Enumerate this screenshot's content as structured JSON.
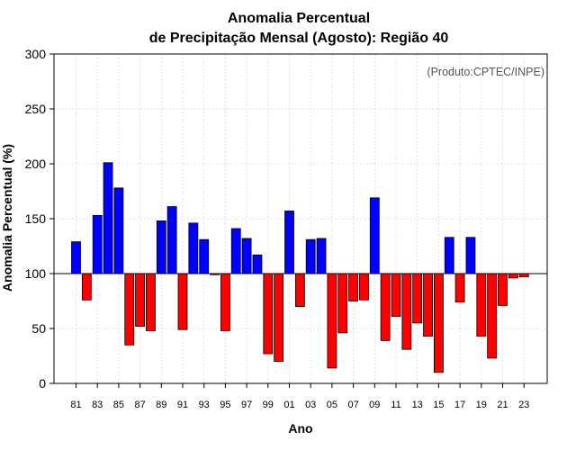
{
  "chart_data": {
    "type": "bar",
    "title": [
      "Anomalia Percentual",
      "de Precipitação Mensal (Agosto): Região 40"
    ],
    "xlabel": "Ano",
    "ylabel": "Anomalia Percentual (%)",
    "annotation": "(Produto:CPTEC/INPE)",
    "baseline": 100,
    "ylim": [
      0,
      300
    ],
    "yticks": [
      0,
      50,
      100,
      150,
      200,
      250,
      300
    ],
    "grid": true,
    "years": [
      1981,
      1982,
      1983,
      1984,
      1985,
      1986,
      1987,
      1988,
      1989,
      1990,
      1991,
      1992,
      1993,
      1994,
      1995,
      1996,
      1997,
      1998,
      1999,
      2000,
      2001,
      2002,
      2003,
      2004,
      2005,
      2006,
      2007,
      2008,
      2009,
      2010,
      2011,
      2012,
      2013,
      2014,
      2015,
      2016,
      2017,
      2018,
      2019,
      2020,
      2021,
      2022,
      2023
    ],
    "xtick_labels": [
      "81",
      "83",
      "85",
      "87",
      "89",
      "91",
      "93",
      "95",
      "97",
      "99",
      "01",
      "03",
      "05",
      "07",
      "09",
      "11",
      "13",
      "15",
      "17",
      "19",
      "21",
      "23"
    ],
    "values": [
      129,
      76,
      153,
      201,
      178,
      35,
      52,
      48,
      148,
      161,
      49,
      146,
      131,
      99,
      48,
      141,
      132,
      117,
      27,
      20,
      157,
      70,
      131,
      132,
      14,
      46,
      75,
      76,
      169,
      39,
      61,
      31,
      55,
      43,
      10,
      133,
      74,
      133,
      43,
      23,
      71,
      96,
      97
    ],
    "colors": {
      "above": "#0000ff",
      "below": "#ff0000",
      "outline": "#000000"
    }
  }
}
